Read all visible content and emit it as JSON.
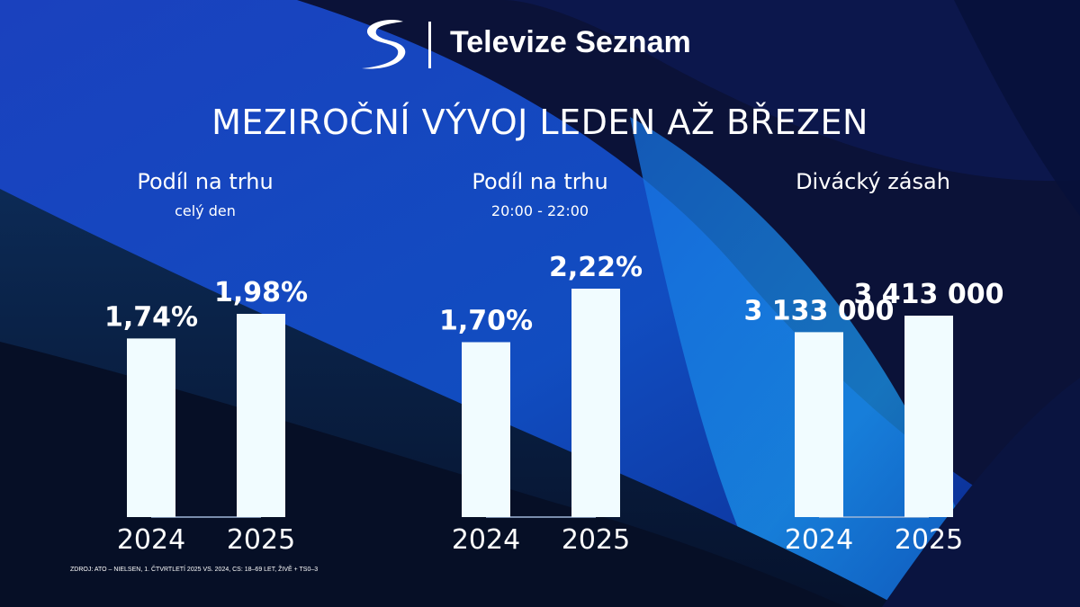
{
  "brand": {
    "name": "Televize Seznam"
  },
  "title": "MEZIROČNÍ VÝVOJ LEDEN AŽ BŘEZEN",
  "colors": {
    "bar": "#f1fcff",
    "text": "#ffffff"
  },
  "chart_data": [
    {
      "type": "bar",
      "title": "Podíl na trhu",
      "subtitle": "celý den",
      "categories": [
        "2024",
        "2025"
      ],
      "values": [
        1.74,
        1.98
      ],
      "data_labels": [
        "1,74%",
        "1,98%"
      ],
      "unit": "%"
    },
    {
      "type": "bar",
      "title": "Podíl na trhu",
      "subtitle": "20:00 - 22:00",
      "categories": [
        "2024",
        "2025"
      ],
      "values": [
        1.7,
        2.22
      ],
      "data_labels": [
        "1,70%",
        "2,22%"
      ],
      "unit": "%"
    },
    {
      "type": "bar",
      "title": "Divácký zásah",
      "subtitle": "",
      "categories": [
        "2024",
        "2025"
      ],
      "values": [
        3133000,
        3413000
      ],
      "data_labels": [
        "3 133 000",
        "3 413 000"
      ]
    }
  ],
  "source": "ZDROJ: ATO – NIELSEN, 1. ČTVRTLETÍ 2025 VS. 2024, CS: 18–69 LET, ŽIVĚ + TS0–3"
}
